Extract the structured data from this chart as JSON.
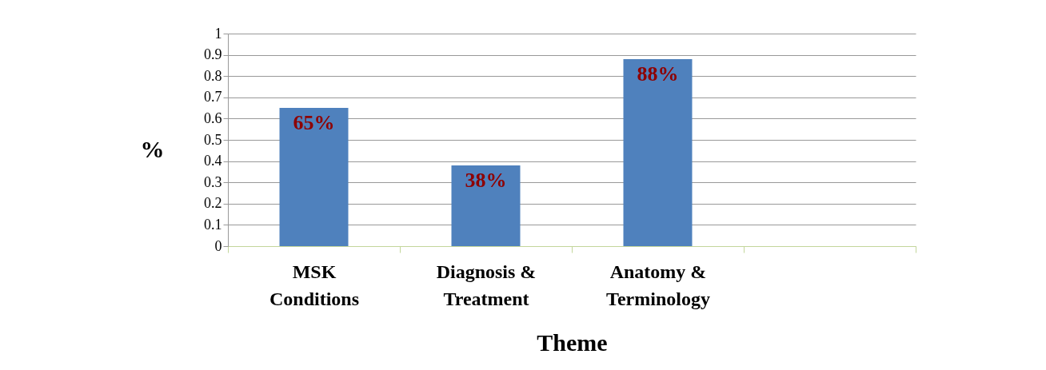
{
  "chart_data": {
    "type": "bar",
    "xlabel": "Theme",
    "ylabel": "%",
    "categories": [
      "MSK Conditions",
      "Diagnosis & Treatment",
      "Anatomy & Terminology",
      null
    ],
    "values": [
      0.65,
      0.38,
      0.88,
      null
    ],
    "value_labels": [
      "65%",
      "38%",
      "88%",
      null
    ],
    "color": "#4f81bd",
    "ylim": [
      0,
      1
    ],
    "yticks": [
      0,
      0.1,
      0.2,
      0.3,
      0.4,
      0.5,
      0.6,
      0.7,
      0.8,
      0.9,
      1
    ],
    "grid": "y"
  }
}
